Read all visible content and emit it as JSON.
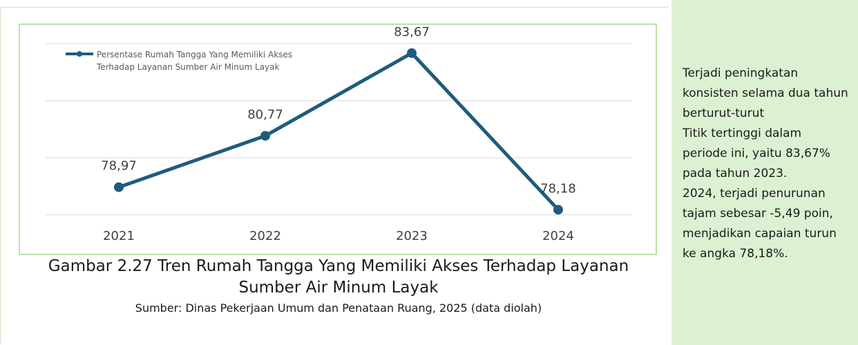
{
  "chart_data": {
    "type": "line",
    "categories": [
      "2021",
      "2022",
      "2023",
      "2024"
    ],
    "series": [
      {
        "name": "Persentase Rumah Tangga Yang Memiliki Akses Terhadap Layanan Sumber Air Minum Layak",
        "color": "#1f5c7c",
        "values": [
          78.97,
          80.77,
          83.67,
          78.18
        ],
        "value_labels": [
          "78,97",
          "80,77",
          "83,67",
          "78,18"
        ]
      }
    ],
    "ylim": [
      77.8,
      84.2
    ],
    "yticks": [
      78,
      80,
      82,
      84
    ],
    "grid": true,
    "legend": "top-left"
  },
  "caption": {
    "title": "Gambar 2.27 Tren Rumah Tangga Yang Memiliki Akses Terhadap Layanan Sumber Air Minum Layak",
    "source": "Sumber: Dinas Pekerjaan Umum dan Penataan Ruang, 2025 (data diolah)"
  },
  "notes": [
    "Terjadi peningkatan konsisten selama dua tahun berturut-turut",
    "Titik tertinggi dalam periode ini, yaitu 83,67% pada tahun 2023.",
    "2024, terjadi penurunan tajam sebesar -5,49 poin, menjadikan capaian turun ke angka 78,18%."
  ]
}
